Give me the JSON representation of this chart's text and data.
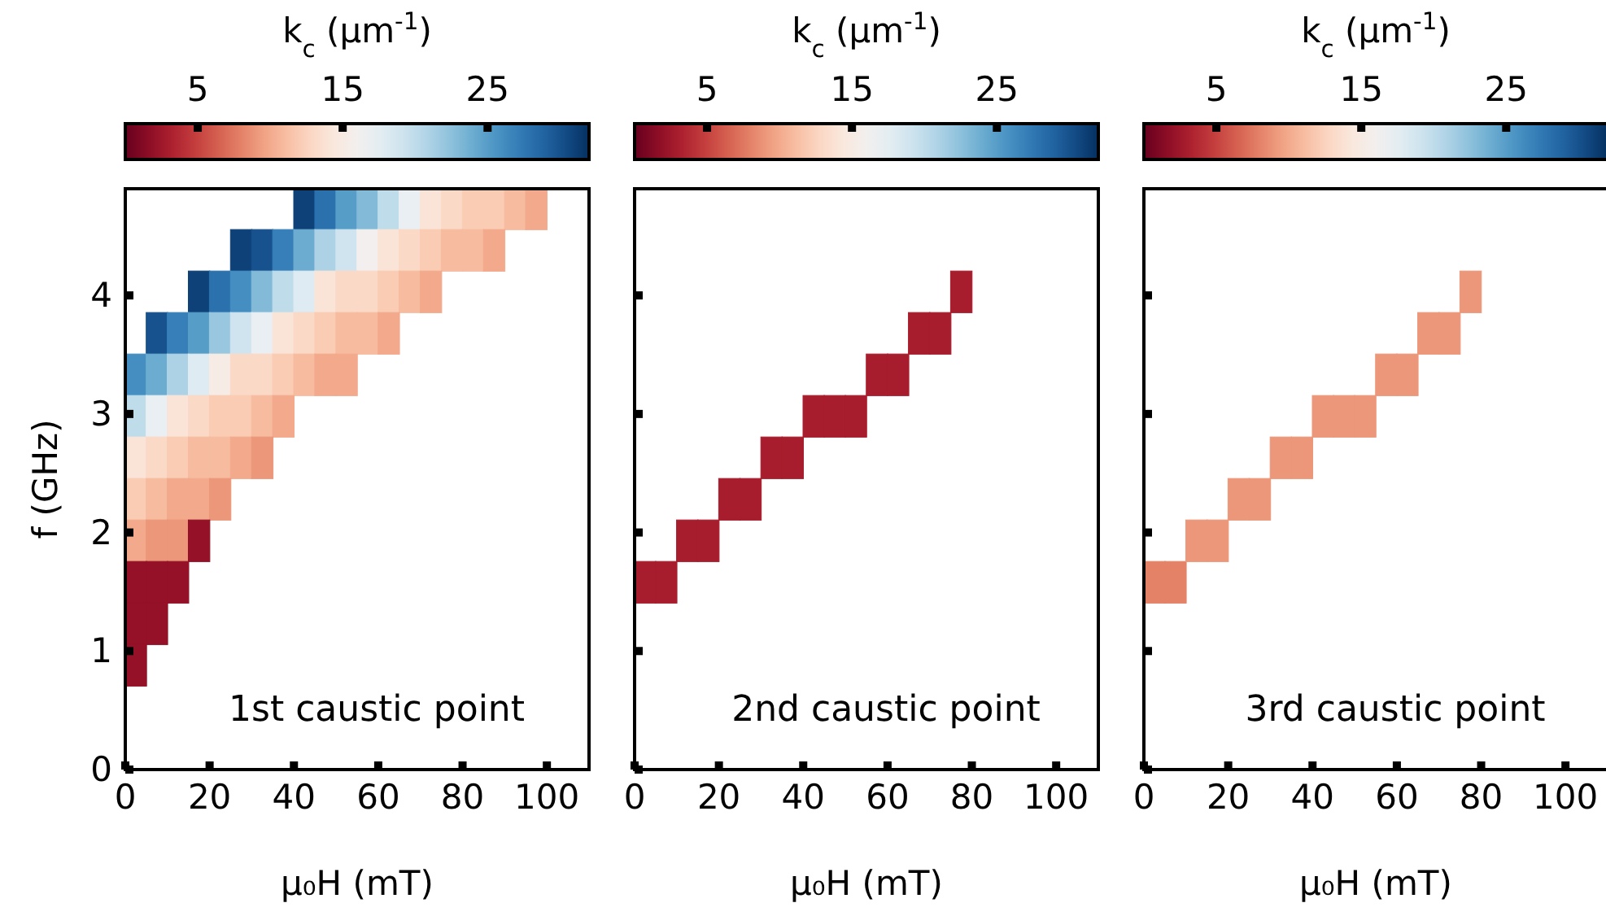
{
  "chart_data": [
    {
      "type": "scatter",
      "marker": "square",
      "clabel": "k$_{c}$ (μm$^{-1}$)",
      "clim": [
        0,
        32
      ],
      "cticks": [
        5,
        15,
        25
      ],
      "xlabel": "μ₀H (mT)",
      "ylabel": "f (GHz)",
      "xlim": [
        0,
        110
      ],
      "xticks": [
        0,
        20,
        40,
        60,
        80,
        100
      ],
      "ylim": [
        0,
        4.9
      ],
      "yticks": [
        0,
        1,
        2,
        3,
        4
      ],
      "annotations": [
        "1st caustic point"
      ],
      "x": [
        42.5,
        47.5,
        52.5,
        57.5,
        62.5,
        67.5,
        72.5,
        77.5,
        82.5,
        87.5,
        92.5,
        97.5,
        27.5,
        32.5,
        37.5,
        42.5,
        47.5,
        52.5,
        57.5,
        62.5,
        67.5,
        72.5,
        77.5,
        82.5,
        87.5,
        17.5,
        22.5,
        27.5,
        32.5,
        37.5,
        42.5,
        47.5,
        52.5,
        57.5,
        62.5,
        67.5,
        72.5,
        7.5,
        12.5,
        17.5,
        22.5,
        27.5,
        32.5,
        37.5,
        42.5,
        47.5,
        52.5,
        57.5,
        62.5,
        2.5,
        7.5,
        12.5,
        17.5,
        22.5,
        27.5,
        32.5,
        37.5,
        42.5,
        47.5,
        52.5,
        2.5,
        7.5,
        12.5,
        17.5,
        22.5,
        27.5,
        32.5,
        37.5,
        2.5,
        7.5,
        12.5,
        17.5,
        22.5,
        27.5,
        32.5,
        2.5,
        7.5,
        12.5,
        17.5,
        22.5,
        2.5,
        7.5,
        12.5,
        17.5,
        2.5,
        7.5,
        12.5,
        2.5,
        7.5,
        2.5
      ],
      "values": [
        4.73,
        4.73,
        4.73,
        4.73,
        4.73,
        4.73,
        4.73,
        4.73,
        4.73,
        4.73,
        4.73,
        4.73,
        4.38,
        4.38,
        4.38,
        4.38,
        4.38,
        4.38,
        4.38,
        4.38,
        4.38,
        4.38,
        4.38,
        4.38,
        4.38,
        4.03,
        4.03,
        4.03,
        4.03,
        4.03,
        4.03,
        4.03,
        4.03,
        4.03,
        4.03,
        4.03,
        4.03,
        3.68,
        3.68,
        3.68,
        3.68,
        3.68,
        3.68,
        3.68,
        3.68,
        3.68,
        3.68,
        3.68,
        3.68,
        3.33,
        3.33,
        3.33,
        3.33,
        3.33,
        3.33,
        3.33,
        3.33,
        3.33,
        3.33,
        3.33,
        2.98,
        2.98,
        2.98,
        2.98,
        2.98,
        2.98,
        2.98,
        2.98,
        2.63,
        2.63,
        2.63,
        2.63,
        2.63,
        2.63,
        2.63,
        2.28,
        2.28,
        2.28,
        2.28,
        2.28,
        1.93,
        1.93,
        1.93,
        1.93,
        1.58,
        1.58,
        1.58,
        1.23,
        1.23,
        0.88
      ],
      "cvalues": [
        31,
        28,
        25,
        23,
        20,
        17,
        14,
        13,
        12,
        12,
        11,
        10,
        31,
        30,
        27,
        24,
        21,
        19,
        16,
        14,
        13,
        12,
        11,
        11,
        10,
        31,
        28,
        26,
        23,
        20,
        18,
        14,
        13,
        13,
        12,
        11,
        10,
        30,
        27,
        25,
        22,
        19,
        17,
        14,
        13,
        12,
        11,
        11,
        10,
        26,
        24,
        21,
        18,
        15,
        13,
        13,
        12,
        11,
        10,
        10,
        20,
        17,
        14,
        13,
        12,
        12,
        11,
        10,
        14,
        13,
        12,
        11,
        11,
        10,
        9,
        12,
        11,
        10,
        10,
        9,
        10,
        9,
        9,
        2,
        2,
        2,
        2,
        2,
        2,
        2
      ]
    },
    {
      "type": "scatter",
      "marker": "square",
      "clabel": "k$_{c}$ (μm$^{-1}$)",
      "clim": [
        0,
        32
      ],
      "cticks": [
        5,
        15,
        25
      ],
      "xlabel": "μ₀H (mT)",
      "xlim": [
        0,
        110
      ],
      "xticks": [
        0,
        20,
        40,
        60,
        80,
        100
      ],
      "ylim": [
        0,
        4.9
      ],
      "yticks": [
        0,
        1,
        2,
        3,
        4
      ],
      "tick_labels": "x",
      "annotations": [
        "2nd caustic point"
      ],
      "x": [
        2.5,
        7.5,
        12.5,
        17.5,
        22.5,
        27.5,
        32.5,
        37.5,
        42.5,
        47.5,
        52.5,
        57.5,
        62.5,
        67.5,
        72.5,
        77.5
      ],
      "values": [
        1.58,
        1.58,
        1.93,
        1.93,
        2.28,
        2.28,
        2.63,
        2.63,
        2.98,
        2.98,
        2.98,
        3.33,
        3.33,
        3.68,
        3.68,
        4.03
      ],
      "cvalues": [
        3,
        3,
        3,
        3,
        3,
        3,
        3,
        3,
        3,
        3,
        3,
        3,
        3,
        3,
        3,
        3
      ]
    },
    {
      "type": "scatter",
      "marker": "square",
      "clabel": "k$_{c}$ (μm$^{-1}$)",
      "clim": [
        0,
        32
      ],
      "cticks": [
        5,
        15,
        25
      ],
      "xlabel": "μ₀H (mT)",
      "xlim": [
        0,
        110
      ],
      "xticks": [
        0,
        20,
        40,
        60,
        80,
        100
      ],
      "ylim": [
        0,
        4.9
      ],
      "yticks": [
        0,
        1,
        2,
        3,
        4
      ],
      "tick_labels": "x",
      "annotations": [
        "3rd caustic point"
      ],
      "x": [
        2.5,
        7.5,
        12.5,
        17.5,
        22.5,
        27.5,
        32.5,
        37.5,
        42.5,
        47.5,
        52.5,
        57.5,
        62.5,
        67.5,
        72.5,
        77.5
      ],
      "values": [
        1.58,
        1.58,
        1.93,
        1.93,
        2.28,
        2.28,
        2.63,
        2.63,
        2.98,
        2.98,
        2.98,
        3.33,
        3.33,
        3.68,
        3.68,
        4.03
      ],
      "cvalues": [
        8,
        8,
        9,
        9,
        9,
        9,
        9,
        9,
        9,
        9,
        9,
        9,
        9,
        9,
        9,
        9
      ]
    }
  ]
}
